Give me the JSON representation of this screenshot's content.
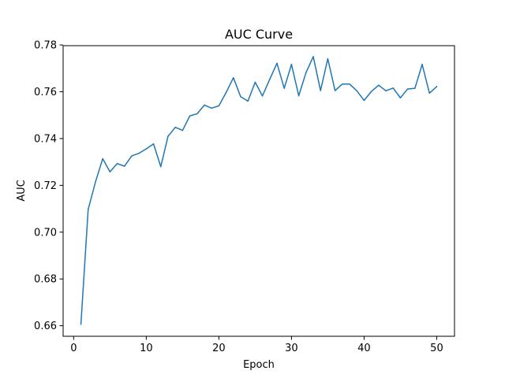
{
  "chart_data": {
    "type": "line",
    "title": "AUC Curve",
    "xlabel": "Epoch",
    "ylabel": "AUC",
    "xlim": [
      -1.45,
      52.45
    ],
    "ylim": [
      0.6555,
      0.7797
    ],
    "xticks": [
      0,
      10,
      20,
      30,
      40,
      50
    ],
    "xtick_labels": [
      "0",
      "10",
      "20",
      "30",
      "40",
      "50"
    ],
    "yticks": [
      0.66,
      0.68,
      0.7,
      0.72,
      0.74,
      0.76,
      0.78
    ],
    "ytick_labels": [
      "0.66",
      "0.68",
      "0.70",
      "0.72",
      "0.74",
      "0.76",
      "0.78"
    ],
    "grid": false,
    "series": [
      {
        "color": "#1f77b4",
        "x": [
          1,
          2,
          3,
          4,
          5,
          6,
          7,
          8,
          9,
          10,
          11,
          12,
          13,
          14,
          15,
          16,
          17,
          18,
          19,
          20,
          21,
          22,
          23,
          24,
          25,
          26,
          27,
          28,
          29,
          30,
          31,
          32,
          33,
          34,
          35,
          36,
          37,
          38,
          39,
          40,
          41,
          42,
          43,
          44,
          45,
          46,
          47,
          48,
          49,
          50
        ],
        "y": [
          0.6607,
          0.7097,
          0.7214,
          0.7314,
          0.7258,
          0.7293,
          0.7282,
          0.7326,
          0.7337,
          0.7356,
          0.7377,
          0.728,
          0.741,
          0.7448,
          0.7435,
          0.7497,
          0.7506,
          0.7543,
          0.753,
          0.754,
          0.7597,
          0.766,
          0.7579,
          0.756,
          0.7641,
          0.7582,
          0.7653,
          0.7722,
          0.7615,
          0.7717,
          0.7583,
          0.7682,
          0.775,
          0.7605,
          0.7741,
          0.7605,
          0.7633,
          0.7633,
          0.7604,
          0.7563,
          0.7601,
          0.7628,
          0.7604,
          0.7616,
          0.7574,
          0.7612,
          0.7615,
          0.7717,
          0.7594,
          0.7622
        ]
      }
    ]
  }
}
